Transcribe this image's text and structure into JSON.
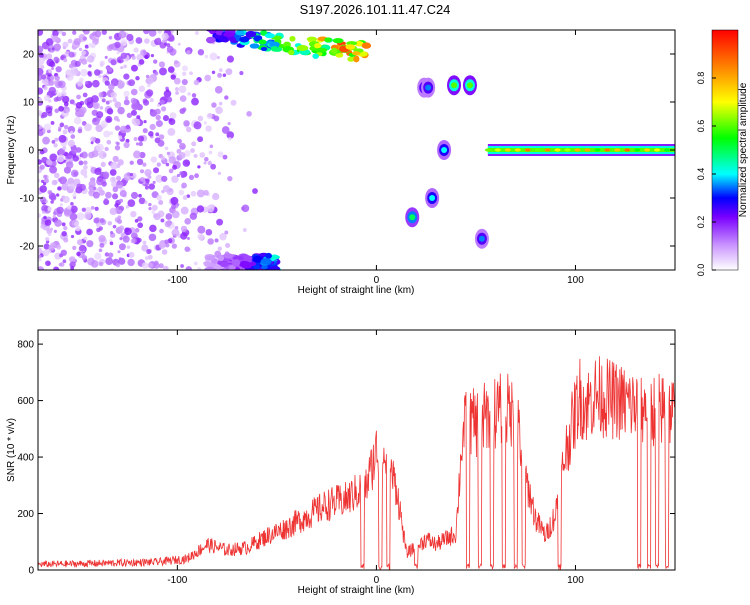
{
  "title": "S197.2026.101.11.47.C24",
  "chart_data": [
    {
      "type": "heatmap",
      "xlabel": "Height of straight line (km)",
      "ylabel": "Frequency (Hz)",
      "xlim": [
        -170,
        150
      ],
      "ylim": [
        -25,
        25
      ],
      "xticks": [
        -100,
        0,
        100
      ],
      "yticks": [
        -20,
        -10,
        0,
        10,
        20
      ],
      "colorbar": {
        "label": "Normalized spectral amplitude",
        "range": [
          0,
          1
        ],
        "ticks": [
          0,
          0.2,
          0.4,
          0.6,
          0.8
        ],
        "colors": [
          "#ffffff",
          "#cc99ff",
          "#7a00ff",
          "#0000ff",
          "#00ffff",
          "#00ff00",
          "#ffff00",
          "#ff8000",
          "#ff0000"
        ]
      },
      "features": [
        {
          "name": "background speckle",
          "x": [
            -170,
            -55
          ],
          "freq": [
            -25,
            25
          ],
          "amplitude": 0.12
        },
        {
          "name": "upper streak",
          "x": [
            -85,
            -5
          ],
          "freq": [
            17,
            25
          ],
          "amplitude": 0.75
        },
        {
          "name": "lower streak",
          "x": [
            -85,
            -50
          ],
          "freq": [
            -25,
            -22
          ],
          "amplitude": 0.3
        },
        {
          "name": "blob",
          "x": [
            18,
            18
          ],
          "freq": -14,
          "amplitude": 0.5
        },
        {
          "name": "blob",
          "x": [
            24,
            26
          ],
          "freq": 13,
          "amplitude": 0.35
        },
        {
          "name": "blob",
          "x": [
            28,
            28
          ],
          "freq": -10,
          "amplitude": 0.4
        },
        {
          "name": "blob",
          "x": [
            34,
            34
          ],
          "freq": 0,
          "amplitude": 0.4
        },
        {
          "name": "blob",
          "x": [
            39,
            47
          ],
          "freq": 13.5,
          "amplitude": 0.6
        },
        {
          "name": "blob",
          "x": [
            53,
            53
          ],
          "freq": -18.5,
          "amplitude": 0.35
        },
        {
          "name": "carrier line",
          "x": [
            56,
            150
          ],
          "freq": 0,
          "amplitude": 0.85
        }
      ]
    },
    {
      "type": "line",
      "xlabel": "Height of straight line (km)",
      "ylabel": "SNR (10 * v/v)",
      "xlim": [
        -170,
        150
      ],
      "ylim": [
        0,
        850
      ],
      "xticks": [
        -100,
        0,
        100
      ],
      "yticks": [
        0,
        200,
        400,
        600,
        800
      ],
      "color": "#ee3333",
      "series": [
        {
          "x": [
            -170,
            -150,
            -130,
            -110,
            -95,
            -85,
            -75,
            -65,
            -55,
            -45,
            -35,
            -25,
            -15,
            -5,
            0,
            5,
            10,
            15,
            20,
            25,
            30,
            35,
            40,
            43,
            45,
            50,
            55,
            60,
            65,
            70,
            75,
            80,
            85,
            90,
            95,
            100,
            102,
            105,
            110,
            120,
            130,
            140,
            150
          ],
          "y": [
            20,
            22,
            25,
            28,
            40,
            90,
            70,
            80,
            120,
            150,
            190,
            230,
            250,
            300,
            420,
            380,
            300,
            60,
            80,
            110,
            90,
            110,
            130,
            460,
            520,
            520,
            540,
            560,
            570,
            550,
            330,
            180,
            120,
            200,
            420,
            560,
            620,
            580,
            620,
            600,
            580,
            570,
            560
          ]
        }
      ],
      "dropouts_x": [
        -7,
        2,
        6,
        20,
        46,
        52,
        58,
        64,
        70,
        74,
        92,
        132,
        137,
        141,
        146
      ]
    }
  ]
}
